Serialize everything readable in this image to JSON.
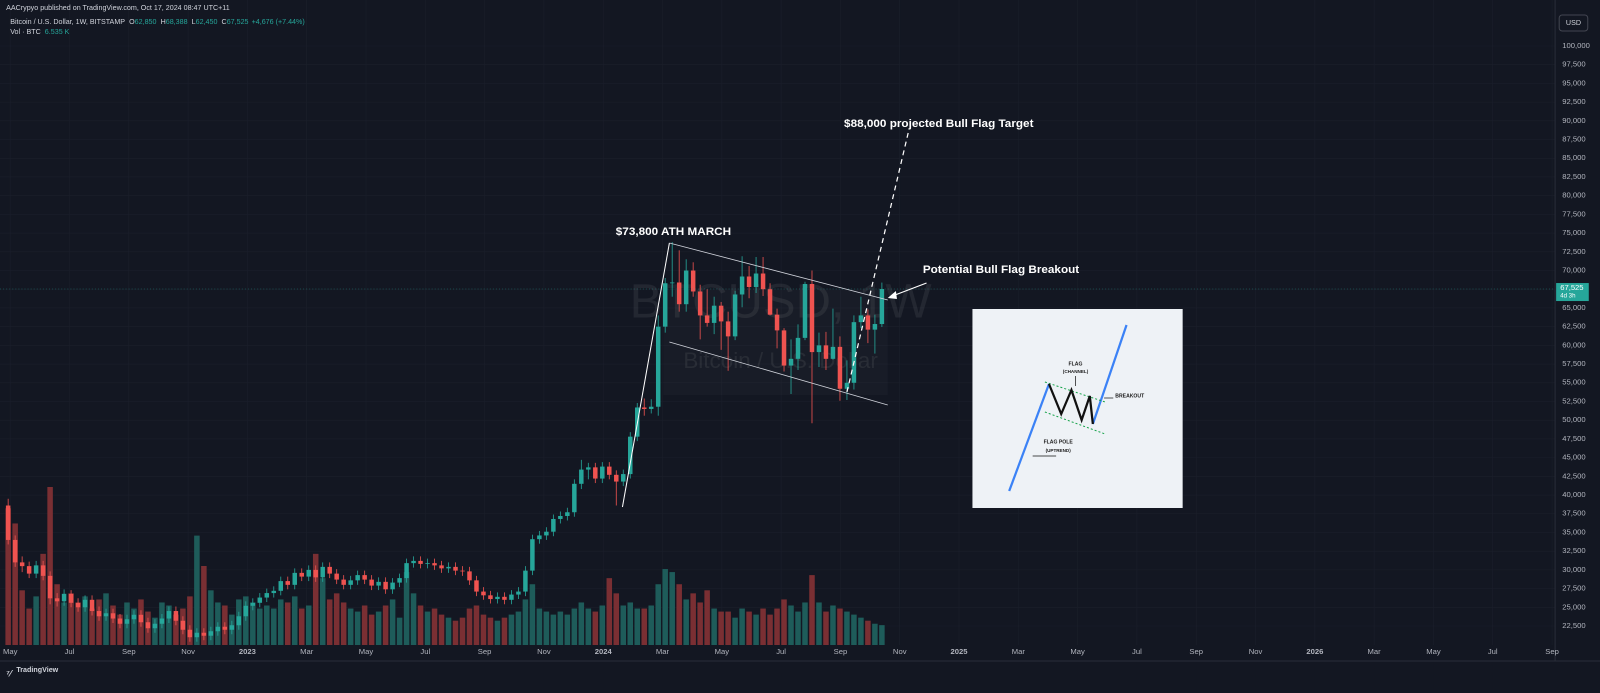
{
  "header": {
    "published": "AACrypyo published on TradingView.com, Oct 17, 2024 08:47 UTC+11",
    "symbol": "Bitcoin / U.S. Dollar, 1W, BITSTAMP",
    "ohlc": [
      {
        "label": "O",
        "value": "62,850"
      },
      {
        "label": "H",
        "value": "68,388"
      },
      {
        "label": "L",
        "value": "62,450"
      },
      {
        "label": "C",
        "value": "67,525"
      }
    ],
    "change": "+4,676 (+7.44%)",
    "volume_label": "Vol · BTC",
    "volume_value": "6.535 K",
    "currency": "USD",
    "countdown": "4d 3h",
    "brand": "TradingView"
  },
  "watermark": {
    "symbol": "BTCUSD, 1W",
    "name": "Bitcoin / U.S. Dollar"
  },
  "annotations": {
    "target": "$88,000 projected Bull Flag Target",
    "ath": "$73,800 ATH MARCH",
    "breakout": "Potential Bull Flag Breakout"
  },
  "diagram": {
    "flag": "FLAG",
    "channel": "(CHANNEL)",
    "breakout": "BREAKOUT",
    "pole": "FLAG POLE",
    "uptrend": "(UPTREND)"
  },
  "chart_data": {
    "type": "candlestick",
    "up_color": "#26a69a",
    "down_color": "#ef5350",
    "grid": true,
    "ylim": [
      19961,
      103475
    ],
    "yticks": [
      {
        "value": 22500,
        "label": "22,500"
      },
      {
        "value": 25000,
        "label": "25,000"
      },
      {
        "value": 27500,
        "label": "27,500"
      },
      {
        "value": 30000,
        "label": "30,000"
      },
      {
        "value": 32500,
        "label": "32,500"
      },
      {
        "value": 35000,
        "label": "35,000"
      },
      {
        "value": 37500,
        "label": "37,500"
      },
      {
        "value": 40000,
        "label": "40,000"
      },
      {
        "value": 42500,
        "label": "42,500"
      },
      {
        "value": 45000,
        "label": "45,000"
      },
      {
        "value": 47500,
        "label": "47,500"
      },
      {
        "value": 50000,
        "label": "50,000"
      },
      {
        "value": 52500,
        "label": "52,500"
      },
      {
        "value": 55000,
        "label": "55,000"
      },
      {
        "value": 57500,
        "label": "57,500"
      },
      {
        "value": 60000,
        "label": "60,000"
      },
      {
        "value": 62500,
        "label": "62,500"
      },
      {
        "value": 65000,
        "label": "65,000"
      },
      {
        "value": 67500,
        "label": "67,500"
      },
      {
        "value": 70000,
        "label": "70,000"
      },
      {
        "value": 72500,
        "label": "72,500"
      },
      {
        "value": 75000,
        "label": "75,000"
      },
      {
        "value": 77500,
        "label": "77,500"
      },
      {
        "value": 80000,
        "label": "80,000"
      },
      {
        "value": 82500,
        "label": "82,500"
      },
      {
        "value": 85000,
        "label": "85,000"
      },
      {
        "value": 87500,
        "label": "87,500"
      },
      {
        "value": 90000,
        "label": "90,000"
      },
      {
        "value": 92500,
        "label": "92,500"
      },
      {
        "value": 95000,
        "label": "95,000"
      },
      {
        "value": 97500,
        "label": "97,500"
      },
      {
        "value": 100000,
        "label": "100,000"
      }
    ],
    "xticks": [
      "May",
      "Jul",
      "Sep",
      "Nov",
      "2023",
      "Mar",
      "May",
      "Jul",
      "Sep",
      "Nov",
      "2024",
      "Mar",
      "May",
      "Jul",
      "Sep",
      "Nov",
      "2025",
      "Mar",
      "May",
      "Jul",
      "Sep",
      "Nov",
      "2026",
      "Mar",
      "May",
      "Jul",
      "Sep"
    ],
    "open": [
      38600,
      34000,
      31000,
      30500,
      29500,
      30600,
      29200,
      26200,
      25800,
      26800,
      25600,
      25000,
      26000,
      24500,
      23800,
      24200,
      23500,
      22800,
      23400,
      24000,
      23000,
      22200,
      22800,
      23500,
      24500,
      23200,
      22000,
      21000,
      21600,
      21200,
      21800,
      22400,
      22000,
      22600,
      23800,
      25200,
      25600,
      26300,
      26900,
      27200,
      28500,
      28000,
      29600,
      29100,
      30000,
      29000,
      30400,
      29500,
      28700,
      28000,
      28600,
      29300,
      28700,
      27900,
      28400,
      27400,
      28300,
      28900,
      30900,
      31200,
      30800,
      30900,
      30600,
      30200,
      30400,
      29900,
      29800,
      28600,
      27100,
      26600,
      26100,
      26400,
      26000,
      26700,
      27100,
      29900,
      34100,
      34600,
      35100,
      36800,
      37200,
      37700,
      41500,
      43400,
      43700,
      42200,
      43800,
      42700,
      41800,
      42800,
      47800,
      51700,
      51500,
      51800,
      62500,
      68300,
      68400,
      65500,
      70000,
      67200,
      64000,
      63000,
      65300,
      63200,
      61200,
      66800,
      69200,
      67800,
      69600,
      67500,
      64100,
      62000,
      57300,
      58200,
      61000,
      68200,
      59100,
      60000,
      58200,
      59800,
      54200,
      55000,
      63100,
      64000,
      62100,
      62850
    ],
    "high": [
      39500,
      34600,
      31800,
      31100,
      31200,
      31200,
      29800,
      26900,
      27400,
      27300,
      26200,
      26600,
      26600,
      25100,
      24800,
      24800,
      24100,
      24000,
      24600,
      24600,
      23600,
      23400,
      24100,
      25100,
      25100,
      23800,
      22600,
      22200,
      22200,
      22400,
      23000,
      23000,
      23200,
      24400,
      25800,
      26200,
      26900,
      27500,
      27800,
      29100,
      29100,
      30200,
      30200,
      30600,
      30600,
      31000,
      31000,
      30100,
      29300,
      29200,
      29900,
      29900,
      29300,
      29000,
      29000,
      28900,
      29500,
      31500,
      31800,
      31800,
      31500,
      31500,
      31200,
      31000,
      31000,
      30500,
      30400,
      29200,
      27700,
      27200,
      27000,
      27000,
      27300,
      27700,
      30500,
      34700,
      35200,
      35700,
      37400,
      37800,
      38300,
      42100,
      44700,
      44300,
      44300,
      44400,
      44400,
      43300,
      43400,
      48400,
      52300,
      52900,
      52800,
      64000,
      69000,
      73800,
      72700,
      71500,
      71100,
      68100,
      67500,
      66500,
      65800,
      64500,
      67300,
      71900,
      70600,
      71800,
      71800,
      68300,
      64900,
      62300,
      60800,
      62800,
      68500,
      70000,
      61700,
      61800,
      64900,
      61200,
      58000,
      64000,
      66500,
      64800,
      64100,
      68388
    ],
    "low": [
      33400,
      30400,
      29700,
      28900,
      28900,
      28600,
      25400,
      25100,
      25200,
      25000,
      24400,
      24400,
      23900,
      23200,
      23200,
      22900,
      22200,
      22200,
      22800,
      22400,
      21600,
      21600,
      22200,
      22900,
      22600,
      21400,
      20400,
      20400,
      20600,
      20600,
      21200,
      21400,
      21400,
      22000,
      23200,
      24600,
      25000,
      25700,
      26300,
      26600,
      27400,
      27400,
      28500,
      28500,
      28400,
      28400,
      28900,
      28100,
      27400,
      27400,
      28000,
      28100,
      27300,
      27300,
      26800,
      26800,
      27700,
      28300,
      30300,
      30200,
      30200,
      30000,
      29600,
      29600,
      29300,
      29200,
      28000,
      26500,
      26000,
      25500,
      25500,
      25400,
      25400,
      26100,
      26500,
      29300,
      33500,
      34000,
      34500,
      36200,
      36600,
      37100,
      40800,
      42100,
      41600,
      41600,
      42100,
      38600,
      41200,
      42200,
      47200,
      50600,
      50900,
      50600,
      61700,
      66500,
      64500,
      64500,
      66500,
      60800,
      62500,
      61500,
      59400,
      56600,
      60700,
      65100,
      66300,
      67000,
      66600,
      64000,
      59600,
      56500,
      53500,
      56700,
      60700,
      49600,
      57100,
      56700,
      58100,
      52600,
      52700,
      54100,
      62300,
      60300,
      58900,
      62450
    ],
    "close": [
      34000,
      31000,
      30500,
      29500,
      30600,
      29200,
      26200,
      25800,
      26800,
      25600,
      25000,
      26000,
      24500,
      23800,
      24200,
      23500,
      22800,
      23400,
      24000,
      23000,
      22200,
      22800,
      23500,
      24500,
      23200,
      22000,
      21000,
      21600,
      21200,
      21800,
      22400,
      22000,
      22600,
      23800,
      25200,
      25600,
      26300,
      26900,
      27200,
      28500,
      28000,
      29600,
      29100,
      30000,
      29000,
      30400,
      29500,
      28700,
      28000,
      28600,
      29300,
      28700,
      27900,
      28400,
      27400,
      28300,
      28900,
      30900,
      31200,
      30800,
      30900,
      30600,
      30200,
      30400,
      29900,
      29800,
      28600,
      27100,
      26600,
      26100,
      26400,
      26000,
      26700,
      27100,
      29900,
      34100,
      34600,
      35100,
      36800,
      37200,
      37700,
      41500,
      43400,
      43700,
      42200,
      43800,
      42700,
      41800,
      42800,
      47800,
      51700,
      51500,
      51800,
      62500,
      68300,
      68400,
      65500,
      70000,
      67200,
      64000,
      63000,
      65300,
      63200,
      61200,
      66800,
      69200,
      67800,
      69600,
      67500,
      64100,
      62000,
      57300,
      58200,
      61000,
      68200,
      59100,
      60000,
      58200,
      59800,
      54200,
      55000,
      63100,
      64000,
      62100,
      62850,
      67525
    ],
    "volume": [
      45,
      40,
      18,
      12,
      16,
      30,
      52,
      20,
      14,
      17,
      14,
      16,
      12,
      15,
      17,
      13,
      10,
      14,
      12,
      15,
      11,
      9,
      14,
      13,
      10,
      12,
      16,
      36,
      26,
      18,
      14,
      13,
      10,
      15,
      16,
      14,
      12,
      13,
      12,
      15,
      14,
      16,
      12,
      13,
      30,
      22,
      15,
      17,
      14,
      12,
      11,
      13,
      10,
      11,
      13,
      15,
      9,
      24,
      17,
      13,
      11,
      12,
      10,
      9,
      8,
      9,
      12,
      13,
      10,
      9,
      8,
      9,
      10,
      11,
      15,
      20,
      12,
      11,
      10,
      11,
      10,
      12,
      14,
      12,
      11,
      13,
      22,
      17,
      13,
      14,
      12,
      12,
      13,
      20,
      25,
      24,
      20,
      15,
      17,
      14,
      18,
      12,
      11,
      11,
      9,
      12,
      11,
      10,
      12,
      10,
      12,
      15,
      13,
      11,
      14,
      23,
      14,
      11,
      13,
      12,
      11,
      10,
      9,
      8,
      7,
      6.535
    ]
  }
}
